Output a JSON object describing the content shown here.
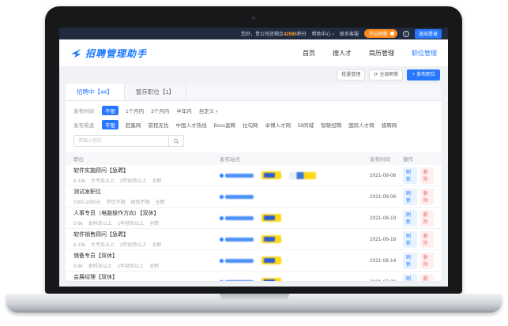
{
  "topbar": {
    "greeting_prefix": "您好，贵公司还剩余",
    "points": "42985",
    "greeting_suffix": "积分",
    "links": [
      {
        "label": "帮助中心",
        "dropdown": true
      },
      {
        "label": "联系客服",
        "dropdown": false
      }
    ],
    "orange_button": "开启刷新",
    "info_icon": "i",
    "blue_button": "退出登录"
  },
  "header": {
    "logo_text": "招聘管理助手",
    "nav": [
      {
        "label": "首页",
        "active": false
      },
      {
        "label": "搜人才",
        "active": false
      },
      {
        "label": "简历管理",
        "active": false
      },
      {
        "label": "职位管理",
        "active": true
      }
    ]
  },
  "actions": {
    "batch": "批量管理",
    "refresh_all": "全部刷新",
    "refresh_icon": "⟳",
    "publish": "发布职位",
    "publish_icon": "+"
  },
  "tabs": [
    {
      "label": "招聘中【44】",
      "active": true
    },
    {
      "label": "暂存职位【1】",
      "active": false
    }
  ],
  "filters": [
    {
      "label": "发布时间",
      "options": [
        {
          "label": "不限",
          "active": true
        },
        {
          "label": "1个月内",
          "active": false
        },
        {
          "label": "3个月内",
          "active": false
        },
        {
          "label": "半年内",
          "active": false
        },
        {
          "label": "自定义",
          "active": false,
          "dropdown": true
        }
      ]
    },
    {
      "label": "发布渠道",
      "options": [
        {
          "label": "不限",
          "active": true
        },
        {
          "label": "赶集网",
          "active": false
        },
        {
          "label": "前程无忧",
          "active": false
        },
        {
          "label": "中国人才热线",
          "active": false
        },
        {
          "label": "Boss直聘",
          "active": false
        },
        {
          "label": "拉勾网",
          "active": false
        },
        {
          "label": "卓博人才网",
          "active": false
        },
        {
          "label": "58同城",
          "active": false
        },
        {
          "label": "智联招聘",
          "active": false
        },
        {
          "label": "国际人才网",
          "active": false
        },
        {
          "label": "猎聘网",
          "active": false
        }
      ]
    }
  ],
  "search": {
    "placeholder": "请输入职位"
  },
  "table": {
    "columns": [
      "职位",
      "发布站点",
      "发布时间",
      "操作"
    ],
    "actions": {
      "refresh": "刷新",
      "delete": "删除"
    },
    "rows": [
      {
        "title": "软件实施顾问【急聘】",
        "meta": [
          "8-10k",
          "大专及以上",
          "3年经验以上",
          "全职"
        ],
        "badges": [
          "link",
          "yellow",
          "mix"
        ],
        "date": "2021-09-06"
      },
      {
        "title": "测试发职位",
        "meta": [
          "1000-2000元",
          "学历不限",
          "经验不限",
          "全职"
        ],
        "badges": [
          "link"
        ],
        "date": "2021-09-06"
      },
      {
        "title": "人事专员（电脑操作方向）【双休】",
        "meta": [
          "5-6k",
          "本科及以上",
          "1年经验以上",
          "全职"
        ],
        "badges": [
          "link",
          "yellow"
        ],
        "date": "2021-08-19"
      },
      {
        "title": "软件销售顾问【急聘】",
        "meta": [
          "8-10k",
          "大专及以上",
          "3年经验以上",
          "全职"
        ],
        "badges": [
          "link",
          "yellow"
        ],
        "date": "2021-08-18"
      },
      {
        "title": "储备专员【双休】",
        "meta": [
          "5-9k",
          "本科及以上",
          "1年经验以上",
          "全职"
        ],
        "badges": [
          "link",
          "yellow"
        ],
        "date": "2021-08-14"
      },
      {
        "title": "会展经理【双休】",
        "meta": [
          "6-9k",
          "大专及以上",
          "3-5年",
          "全职"
        ],
        "badges": [
          "link",
          "yellow"
        ],
        "date": "2021-07-30"
      }
    ]
  },
  "colors": {
    "primary": "#2878ff",
    "topbar_bg": "#202b40",
    "orange_button": "#ff8c1a",
    "points_orange": "#ff9a2e",
    "danger": "#f56c6c",
    "yellow_badge": "#ffd814",
    "logo_blue": "#1677ff"
  }
}
